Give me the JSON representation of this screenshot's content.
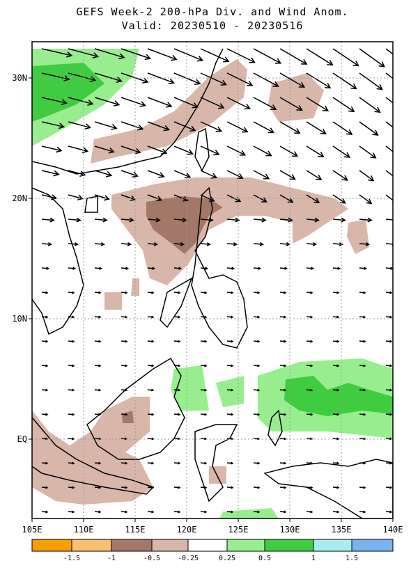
{
  "header": {
    "title": "GEFS Week-2 200-hPa Div. and Wind Anom.",
    "subtitle": "Valid: 20230510 - 20230516"
  },
  "map": {
    "lon_labels": [
      "105E",
      "110E",
      "115E",
      "120E",
      "125E",
      "130E",
      "135E",
      "140E"
    ],
    "lat_labels": [
      "30N",
      "20N",
      "10N",
      "EQ"
    ]
  },
  "colorbar": {
    "labels": [
      "-1.5",
      "-1",
      "-0.5",
      "-0.25",
      "0.25",
      "0.5",
      "1",
      "1.5"
    ],
    "colors": [
      "#f5a000",
      "#f8c070",
      "#a47868",
      "#d8b6aa",
      "#ffffff",
      "#98ee8e",
      "#40cc40",
      "#a8eef0",
      "#78b4ee"
    ]
  }
}
